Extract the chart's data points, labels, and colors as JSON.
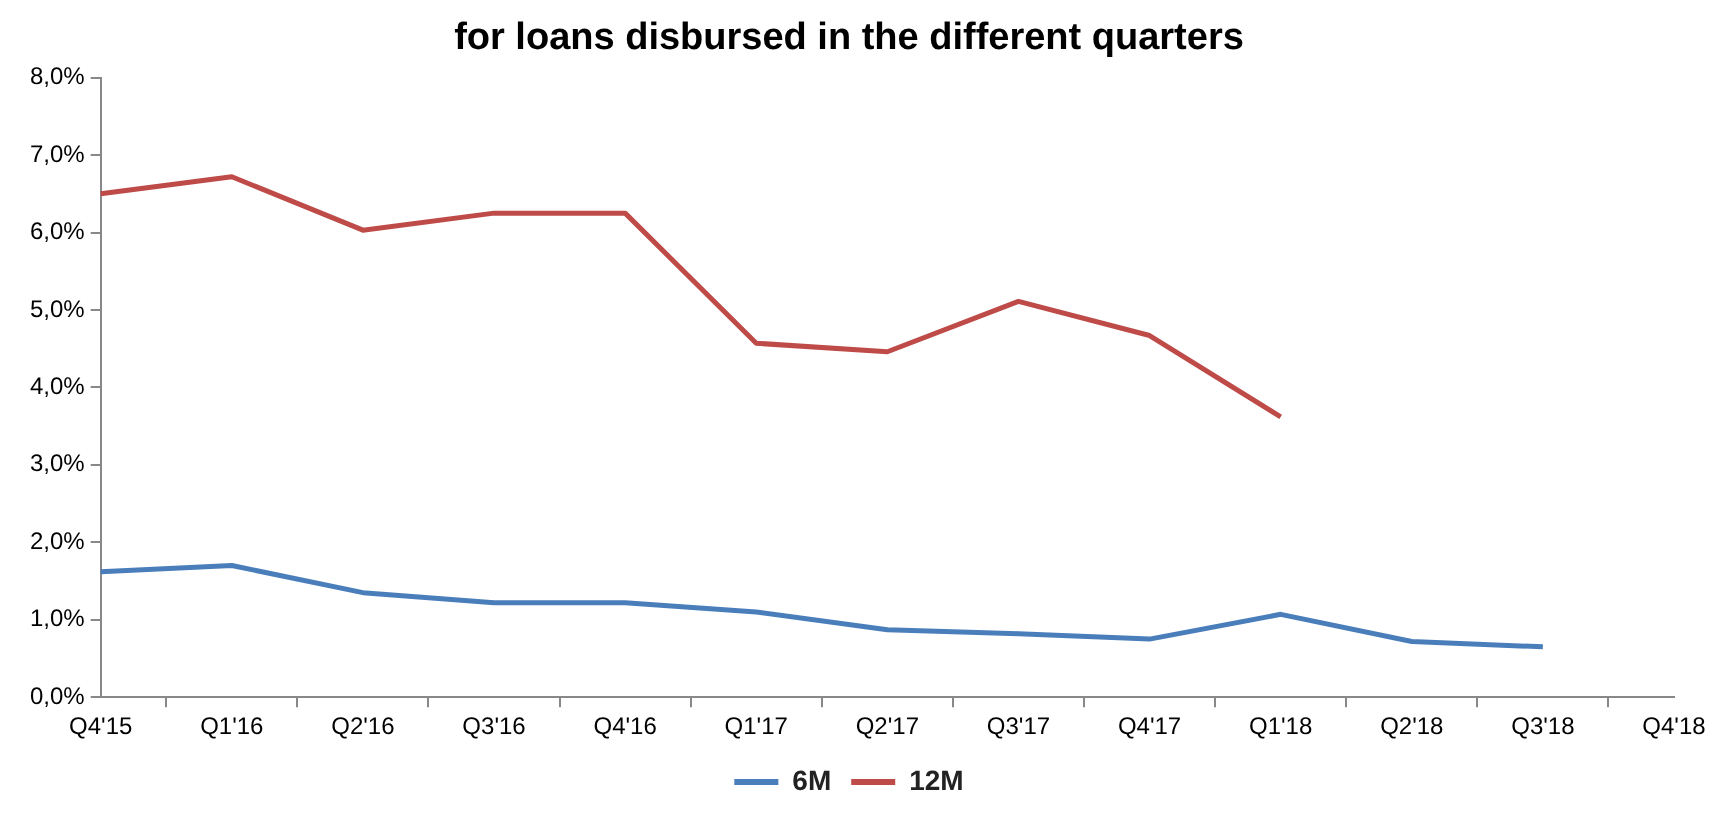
{
  "chart_data": {
    "type": "line",
    "title": "for loans disbursed in the different quarters",
    "categories": [
      "Q4'15",
      "Q1'16",
      "Q2'16",
      "Q3'16",
      "Q4'16",
      "Q1'17",
      "Q2'17",
      "Q3'17",
      "Q4'17",
      "Q1'18",
      "Q2'18",
      "Q3'18",
      "Q4'18"
    ],
    "series": [
      {
        "name": "6M",
        "color": "#4a7ebb",
        "values": [
          1.62,
          1.7,
          1.35,
          1.22,
          1.22,
          1.1,
          0.87,
          0.82,
          0.75,
          1.07,
          0.72,
          0.65,
          null
        ]
      },
      {
        "name": "12M",
        "color": "#be4b48",
        "values": [
          6.5,
          6.72,
          6.03,
          6.25,
          6.25,
          4.57,
          4.46,
          5.11,
          4.67,
          3.62,
          null,
          null,
          null
        ]
      }
    ],
    "ylim": [
      0,
      8
    ],
    "yticks": [
      {
        "value": 0,
        "label": "0,0%"
      },
      {
        "value": 1,
        "label": "1,0%"
      },
      {
        "value": 2,
        "label": "2,0%"
      },
      {
        "value": 3,
        "label": "3,0%"
      },
      {
        "value": 4,
        "label": "4,0%"
      },
      {
        "value": 5,
        "label": "5,0%"
      },
      {
        "value": 6,
        "label": "6,0%"
      },
      {
        "value": 7,
        "label": "7,0%"
      },
      {
        "value": 8,
        "label": "8,0%"
      }
    ],
    "grid": false,
    "legend": "bottom",
    "marker": "none",
    "line_style": "solid"
  }
}
